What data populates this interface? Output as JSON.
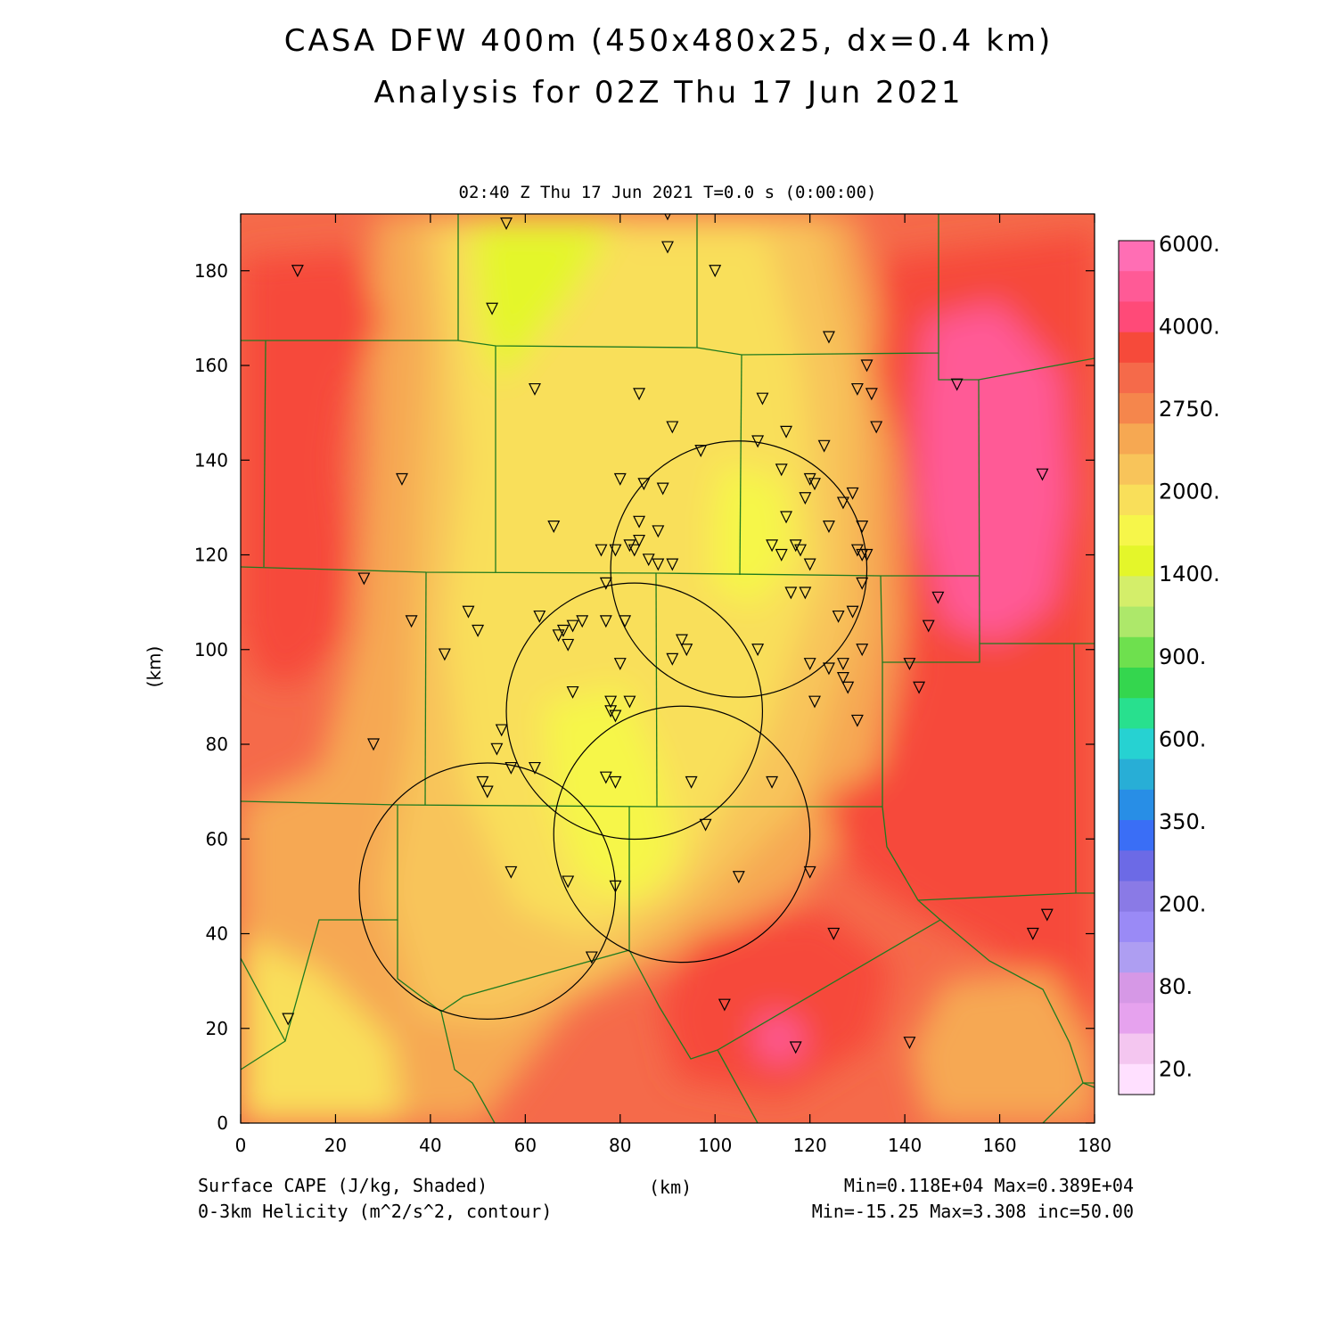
{
  "title_line1": "CASA DFW 400m (450x480x25, dx=0.4 km)",
  "title_line2": "Analysis for 02Z Thu 17 Jun 2021",
  "time_header": "02:40 Z Thu 17 Jun 2021    T=0.0 s (0:00:00)",
  "axes": {
    "x_ticks": [
      "0",
      "20",
      "40",
      "60",
      "80",
      "100",
      "120",
      "140",
      "160",
      "180"
    ],
    "y_ticks": [
      "0",
      "20",
      "40",
      "60",
      "80",
      "100",
      "120",
      "140",
      "160",
      "180"
    ],
    "x_label": "(km)",
    "y_label": "(km)",
    "x_range_km": [
      0,
      180
    ],
    "y_range_km": [
      0,
      192
    ]
  },
  "colorbar": {
    "labels": [
      "6000.",
      "4000.",
      "2750.",
      "2000.",
      "1400.",
      "900.",
      "600.",
      "350.",
      "200.",
      "80.",
      "20."
    ],
    "colors_top_to_bottom": [
      "#ff6eb4",
      "#ff5a96",
      "#ff4a78",
      "#f64a3a",
      "#f56a4a",
      "#f5864c",
      "#f6a852",
      "#f8c45a",
      "#f9df5a",
      "#f6f64a",
      "#e4f62a",
      "#d4ee6a",
      "#ade86a",
      "#6ee04e",
      "#34d64e",
      "#28e08e",
      "#26d2d2",
      "#28aed6",
      "#288ee6",
      "#3a6ef6",
      "#6c6ae6",
      "#8a7ae6",
      "#9a8af6",
      "#ae9ef2",
      "#d698e6",
      "#e6a2ee",
      "#f4c6f0",
      "#ffe0ff"
    ]
  },
  "map_colors": {
    "red": "#f64a3a",
    "red_orange": "#f56a4a",
    "orange": "#f6a852",
    "light_orange": "#f8c45a",
    "yellow": "#f9df5a",
    "yellow_bright": "#f6f64a",
    "lime": "#e4f62a",
    "green": "#ade86a",
    "pink": "#ff5a96",
    "county_lines": "#1f7a1f",
    "helicity_contour": "#000000"
  },
  "footer": {
    "field1": "Surface CAPE (J/kg, Shaded)",
    "field2": "0-3km Helicity (m^2/s^2, contour)",
    "units": "(km)",
    "stats1": "Min=0.118E+04 Max=0.389E+04",
    "stats2": "Min=-15.25 Max=3.308 inc=50.00"
  },
  "helicity_rings_km": [
    {
      "cx": 105,
      "cy": 117,
      "r": 27
    },
    {
      "cx": 83,
      "cy": 87,
      "r": 27
    },
    {
      "cx": 52,
      "cy": 49,
      "r": 27
    },
    {
      "cx": 93,
      "cy": 61,
      "r": 27
    }
  ],
  "stations_km": [
    [
      12,
      180
    ],
    [
      56,
      190
    ],
    [
      90,
      192
    ],
    [
      90,
      185
    ],
    [
      100,
      180
    ],
    [
      53,
      172
    ],
    [
      62,
      155
    ],
    [
      84,
      154
    ],
    [
      34,
      136
    ],
    [
      26,
      115
    ],
    [
      36,
      106
    ],
    [
      124,
      166
    ],
    [
      132,
      160
    ],
    [
      130,
      155
    ],
    [
      133,
      154
    ],
    [
      110,
      153
    ],
    [
      109,
      144
    ],
    [
      115,
      146
    ],
    [
      123,
      143
    ],
    [
      91,
      147
    ],
    [
      97,
      142
    ],
    [
      134,
      147
    ],
    [
      114,
      138
    ],
    [
      80,
      136
    ],
    [
      85,
      135
    ],
    [
      89,
      134
    ],
    [
      120,
      136
    ],
    [
      121,
      135
    ],
    [
      129,
      133
    ],
    [
      127,
      131
    ],
    [
      119,
      132
    ],
    [
      115,
      128
    ],
    [
      124,
      126
    ],
    [
      66,
      126
    ],
    [
      84,
      127
    ],
    [
      88,
      125
    ],
    [
      131,
      126
    ],
    [
      84,
      123
    ],
    [
      83,
      121
    ],
    [
      82,
      122
    ],
    [
      79,
      121
    ],
    [
      76,
      121
    ],
    [
      112,
      122
    ],
    [
      114,
      120
    ],
    [
      117,
      122
    ],
    [
      118,
      121
    ],
    [
      130,
      121
    ],
    [
      131,
      120
    ],
    [
      132,
      120
    ],
    [
      86,
      119
    ],
    [
      88,
      118
    ],
    [
      91,
      118
    ],
    [
      120,
      118
    ],
    [
      131,
      114
    ],
    [
      77,
      114
    ],
    [
      116,
      112
    ],
    [
      119,
      112
    ],
    [
      147,
      111
    ],
    [
      48,
      108
    ],
    [
      63,
      107
    ],
    [
      77,
      106
    ],
    [
      81,
      106
    ],
    [
      70,
      105
    ],
    [
      72,
      106
    ],
    [
      68,
      104
    ],
    [
      67,
      103
    ],
    [
      69,
      101
    ],
    [
      50,
      104
    ],
    [
      126,
      107
    ],
    [
      129,
      108
    ],
    [
      145,
      105
    ],
    [
      93,
      102
    ],
    [
      94,
      100
    ],
    [
      109,
      100
    ],
    [
      131,
      100
    ],
    [
      43,
      99
    ],
    [
      80,
      97
    ],
    [
      91,
      98
    ],
    [
      120,
      97
    ],
    [
      124,
      96
    ],
    [
      127,
      97
    ],
    [
      141,
      97
    ],
    [
      127,
      94
    ],
    [
      128,
      92
    ],
    [
      143,
      92
    ],
    [
      70,
      91
    ],
    [
      78,
      89
    ],
    [
      78,
      87
    ],
    [
      79,
      86
    ],
    [
      82,
      89
    ],
    [
      121,
      89
    ],
    [
      130,
      85
    ],
    [
      55,
      83
    ],
    [
      28,
      80
    ],
    [
      54,
      79
    ],
    [
      57,
      75
    ],
    [
      62,
      75
    ],
    [
      77,
      73
    ],
    [
      79,
      72
    ],
    [
      51,
      72
    ],
    [
      52,
      70
    ],
    [
      95,
      72
    ],
    [
      112,
      72
    ],
    [
      98,
      63
    ],
    [
      57,
      53
    ],
    [
      69,
      51
    ],
    [
      79,
      50
    ],
    [
      105,
      52
    ],
    [
      120,
      53
    ],
    [
      125,
      40
    ],
    [
      74,
      35
    ],
    [
      170,
      44
    ],
    [
      167,
      40
    ],
    [
      10,
      22
    ],
    [
      102,
      25
    ],
    [
      117,
      16
    ],
    [
      141,
      17
    ],
    [
      151,
      156
    ],
    [
      169,
      137
    ]
  ]
}
